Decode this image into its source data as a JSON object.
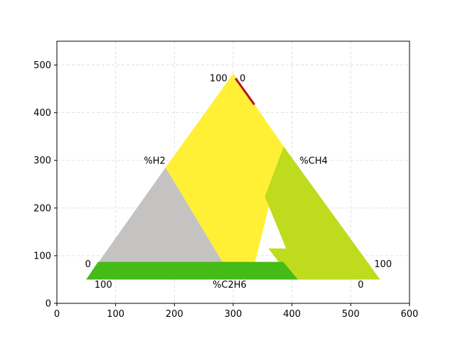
{
  "chart_data": {
    "type": "area",
    "xlim": [
      0,
      600
    ],
    "ylim": [
      0,
      550
    ],
    "xticks": [
      0,
      100,
      200,
      300,
      400,
      500,
      600
    ],
    "yticks": [
      0,
      100,
      200,
      300,
      400,
      500
    ],
    "grid": true,
    "grid_style": "dashed",
    "regions": [
      {
        "color": "#c4c3c2",
        "points": [
          [
            50,
            50
          ],
          [
            185,
            285
          ],
          [
            300,
            50
          ]
        ]
      },
      {
        "color": "#fff035",
        "points": [
          [
            185,
            285
          ],
          [
            300,
            482
          ],
          [
            386,
            329
          ],
          [
            330,
            50
          ],
          [
            300,
            50
          ]
        ]
      },
      {
        "color": "#bedb1d",
        "points": [
          [
            386,
            329
          ],
          [
            550,
            50
          ],
          [
            400,
            50
          ],
          [
            360,
            115
          ],
          [
            390,
            115
          ],
          [
            354,
            224
          ]
        ]
      },
      {
        "color": "#44bb16",
        "points": [
          [
            50,
            50
          ],
          [
            70,
            87
          ],
          [
            385,
            87
          ],
          [
            410,
            50
          ]
        ]
      }
    ],
    "lines": [
      {
        "color": "#b2181a",
        "points": [
          [
            304,
            472
          ],
          [
            336,
            417
          ]
        ]
      }
    ],
    "annotations": [
      {
        "text": "100",
        "x": 260,
        "y": 466
      },
      {
        "text": "0",
        "x": 311,
        "y": 466
      },
      {
        "text": "%H2",
        "x": 148,
        "y": 293
      },
      {
        "text": "%CH4",
        "x": 413,
        "y": 293
      },
      {
        "text": "0",
        "x": 48,
        "y": 76
      },
      {
        "text": "100",
        "x": 540,
        "y": 76
      },
      {
        "text": "100",
        "x": 64,
        "y": 33
      },
      {
        "text": "%C2H6",
        "x": 265,
        "y": 33
      },
      {
        "text": "0",
        "x": 512,
        "y": 33
      }
    ]
  }
}
